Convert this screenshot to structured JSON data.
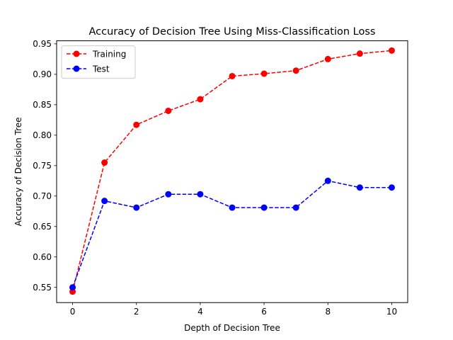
{
  "chart_data": {
    "type": "line",
    "title": "Accuracy of Decision Tree Using Miss-Classification Loss",
    "xlabel": "Depth of Decision Tree",
    "ylabel": "Accuracy of Decision Tree",
    "xlim": [
      -0.5,
      10.5
    ],
    "ylim": [
      0.525,
      0.955
    ],
    "xticks": [
      0,
      2,
      4,
      6,
      8,
      10
    ],
    "yticks": [
      0.55,
      0.6,
      0.65,
      0.7,
      0.75,
      0.8,
      0.85,
      0.9,
      0.95
    ],
    "x": [
      0,
      1,
      2,
      3,
      4,
      5,
      6,
      7,
      8,
      9,
      10
    ],
    "grid": false,
    "legend_position": "top-left",
    "series": [
      {
        "name": "Training",
        "color": "#ff0000",
        "line_style": "dashed",
        "marker": "circle",
        "values": [
          0.543,
          0.755,
          0.817,
          0.84,
          0.859,
          0.897,
          0.901,
          0.906,
          0.925,
          0.934,
          0.939
        ]
      },
      {
        "name": "Test",
        "color": "#0000ff",
        "line_style": "dashed",
        "marker": "circle",
        "values": [
          0.55,
          0.692,
          0.681,
          0.703,
          0.703,
          0.681,
          0.681,
          0.681,
          0.725,
          0.714,
          0.714
        ]
      }
    ]
  }
}
